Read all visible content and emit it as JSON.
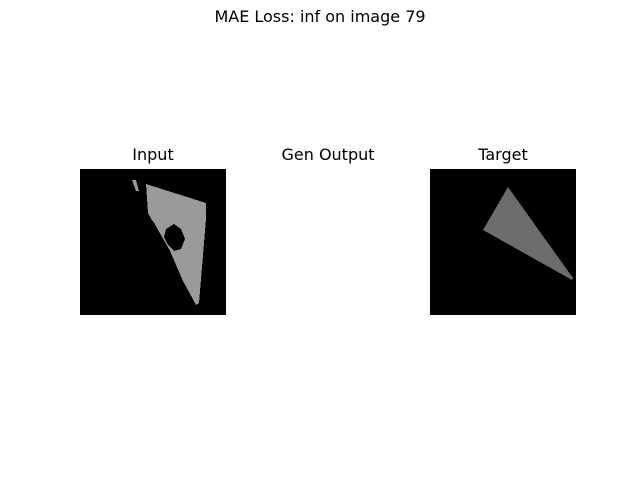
{
  "figure": {
    "suptitle": "MAE Loss: inf on image 79"
  },
  "panels": [
    {
      "title": "Input",
      "background": "#000000",
      "shape_color": "#9a9a9a"
    },
    {
      "title": "Gen Output",
      "background": "#ffffff"
    },
    {
      "title": "Target",
      "background": "#000000",
      "shape_color": "#6c6c6c"
    }
  ]
}
